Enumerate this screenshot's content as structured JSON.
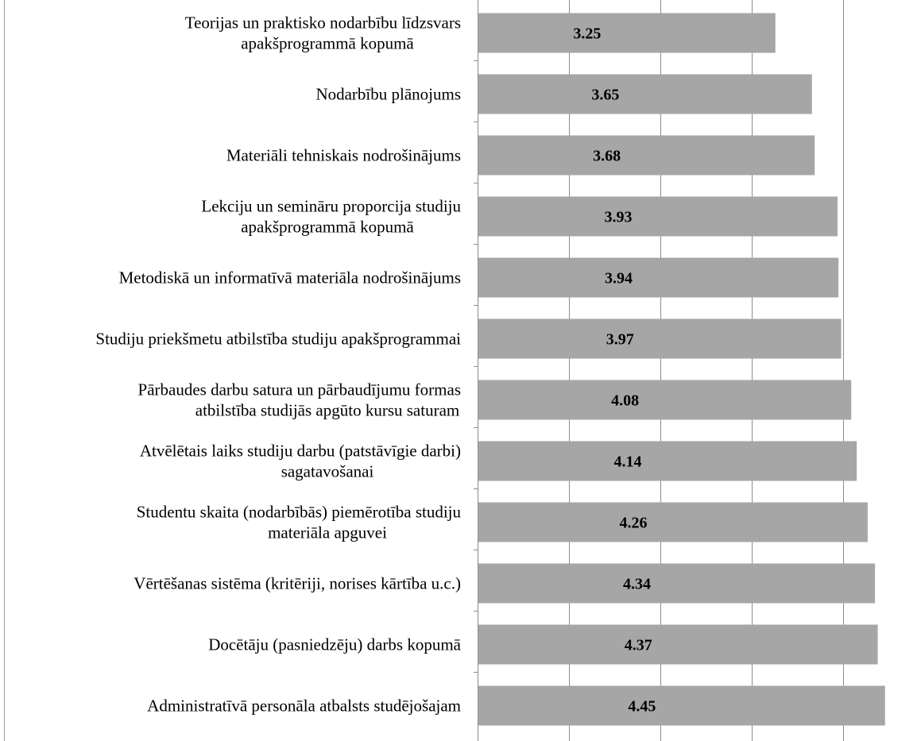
{
  "chart_data": {
    "type": "bar",
    "orientation": "horizontal",
    "categories": [
      [
        "Teorijas un praktisko nodarbību līdzsvars",
        "apakšprogrammā kopumā"
      ],
      [
        "Nodarbību plānojums"
      ],
      [
        "Materiāli tehniskais nodrošinājums"
      ],
      [
        "Lekciju un semināru proporcija studiju",
        "apakšprogrammā kopumā"
      ],
      [
        "Metodiskā un informatīvā materiāla nodrošinājums"
      ],
      [
        "Studiju priekšmetu atbilstība studiju apakšprogrammai"
      ],
      [
        "Pārbaudes darbu satura un pārbaudījumu formas",
        "atbilstība studijās apgūto kursu saturam"
      ],
      [
        "Atvēlētais laiks studiju darbu (patstāvīgie darbi)",
        "sagatavošanai"
      ],
      [
        "Studentu skaita (nodarbībās) piemērotība studiju",
        "materiāla apguvei"
      ],
      [
        "Vērtēšanas sistēma (kritēriji, norises kārtība u.c.)"
      ],
      [
        "Docētāju (pasniedzēju) darbs kopumā"
      ],
      [
        "Administratīvā personāla atbalsts studējošajam"
      ]
    ],
    "values": [
      3.25,
      3.65,
      3.68,
      3.93,
      3.94,
      3.97,
      4.08,
      4.14,
      4.26,
      4.34,
      4.37,
      4.45
    ],
    "value_labels": [
      "3.25",
      "3.65",
      "3.68",
      "3.93",
      "3.94",
      "3.97",
      "4.08",
      "4.14",
      "4.26",
      "4.34",
      "4.37",
      "4.45"
    ],
    "xlim": [
      0,
      5
    ],
    "grid": true,
    "bar_color": "#a6a6a6",
    "gridline_color": "#8c8c8c"
  }
}
